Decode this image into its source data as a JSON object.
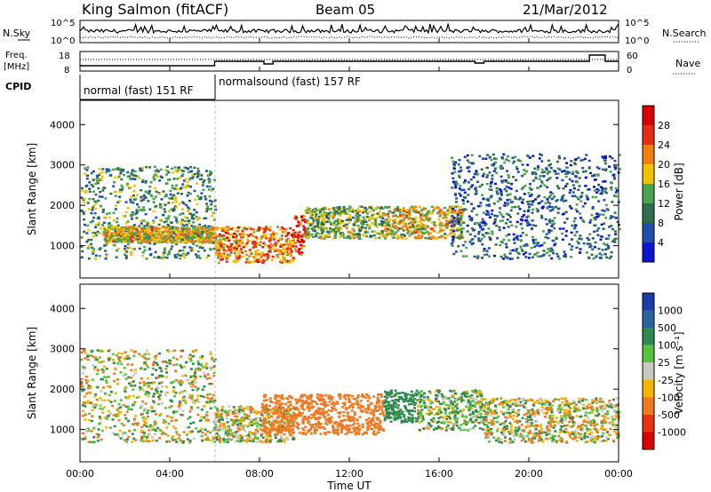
{
  "header": {
    "station": "King Salmon (fitACF)",
    "beam": "Beam 05",
    "date": "21/Mar/2012"
  },
  "noise_panel": {
    "left_label": "N.Sky",
    "right_label": "N.Search",
    "ytick_top": "10^5",
    "ytick_bottom": "10^0"
  },
  "freq_panel": {
    "left_label_line1": "Freq.",
    "left_label_line2": "[MHz]",
    "left_ticks": [
      "18",
      "8"
    ],
    "right_ticks": [
      "60",
      "0"
    ],
    "right_label": "Nave"
  },
  "cpid": {
    "label": "CPID",
    "segments": [
      {
        "start_hour": 0,
        "end_hour": 6,
        "text": "normal (fast) 151 RF"
      },
      {
        "start_hour": 6,
        "end_hour": 24,
        "text": "normalsound (fast) 157 RF"
      }
    ]
  },
  "axes": {
    "xlabel": "Time UT",
    "xticks": [
      "00:00",
      "04:00",
      "08:00",
      "12:00",
      "16:00",
      "20:00",
      "00:00"
    ],
    "ylabel": "Slant Range [km]",
    "yticks": [
      "1000",
      "2000",
      "3000",
      "4000"
    ]
  },
  "power_colorbar": {
    "title": "Power [dB]",
    "ticks": [
      "4",
      "8",
      "12",
      "16",
      "20",
      "24",
      "28"
    ],
    "colors": [
      "#0a14d2",
      "#1f4fa8",
      "#2d6e4e",
      "#49a34e",
      "#f2c200",
      "#f07f10",
      "#e82a18",
      "#d80000"
    ]
  },
  "velocity_colorbar": {
    "title": "Velocity [m s⁻¹]",
    "ticks": [
      "1000",
      "500",
      "100",
      "25",
      "-25",
      "-100",
      "-500",
      "-1000"
    ],
    "colors": [
      "#1a3ca8",
      "#2a63a0",
      "#2e8a4e",
      "#55c43c",
      "#c8c8c0",
      "#f4b400",
      "#f07820",
      "#e8320c",
      "#d80000"
    ]
  },
  "chart_data": [
    {
      "type": "heatmap",
      "title": "Power [dB]",
      "xlabel": "Time UT",
      "ylabel": "Slant Range [km]",
      "xlim": [
        0,
        24
      ],
      "ylim": [
        200,
        4600
      ],
      "clim": [
        0,
        30
      ],
      "regions": [
        {
          "t": [
            0,
            6
          ],
          "range_km": [
            700,
            3000
          ],
          "power_db": 12
        },
        {
          "t": [
            1,
            6
          ],
          "range_km": [
            1100,
            1500
          ],
          "power_db": 18
        },
        {
          "t": [
            6,
            9.5
          ],
          "range_km": [
            600,
            1500
          ],
          "power_db": 22
        },
        {
          "t": [
            9.5,
            10
          ],
          "range_km": [
            800,
            1800
          ],
          "power_db": 28
        },
        {
          "t": [
            10,
            13.5
          ],
          "range_km": [
            1200,
            2000
          ],
          "power_db": 14
        },
        {
          "t": [
            13.5,
            17
          ],
          "range_km": [
            1200,
            2000
          ],
          "power_db": 18
        },
        {
          "t": [
            16.5,
            24
          ],
          "range_km": [
            700,
            3300
          ],
          "power_db": 8
        }
      ]
    },
    {
      "type": "heatmap",
      "title": "Velocity [m s⁻¹]",
      "xlabel": "Time UT",
      "ylabel": "Slant Range [km]",
      "xlim": [
        0,
        24
      ],
      "ylim": [
        200,
        4600
      ],
      "clim": [
        -1000,
        1000
      ],
      "regions": [
        {
          "t": [
            0,
            6
          ],
          "range_km": [
            700,
            3000
          ],
          "velocity": 0
        },
        {
          "t": [
            6,
            9.5
          ],
          "range_km": [
            700,
            1600
          ],
          "velocity": 0
        },
        {
          "t": [
            8,
            13.5
          ],
          "range_km": [
            900,
            1900
          ],
          "velocity": -300
        },
        {
          "t": [
            13.5,
            15
          ],
          "range_km": [
            1200,
            2000
          ],
          "velocity": 300
        },
        {
          "t": [
            15,
            18
          ],
          "range_km": [
            1000,
            2000
          ],
          "velocity": 80
        },
        {
          "t": [
            18,
            24
          ],
          "range_km": [
            700,
            1800
          ],
          "velocity": 0
        }
      ]
    }
  ]
}
